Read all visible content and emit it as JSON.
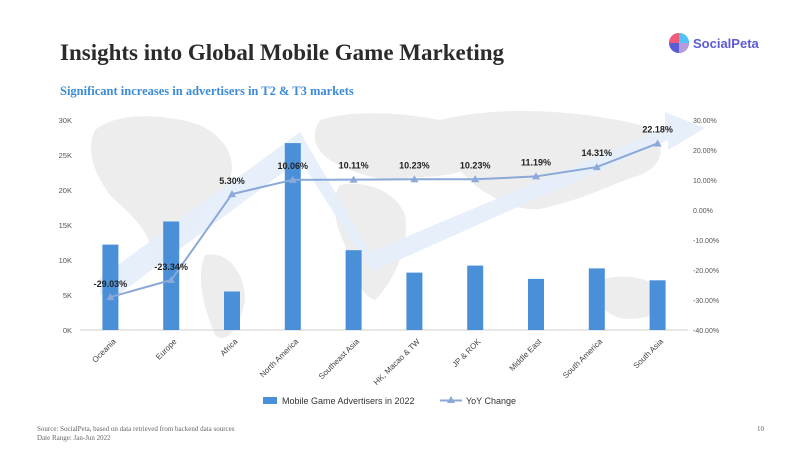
{
  "title": "Insights into Global Mobile Game Marketing",
  "subtitle": "Significant increases in advertisers in T2 & T3 markets",
  "logo": {
    "text": "SocialPeta",
    "colors": [
      "#f25c7a",
      "#5b5bd6",
      "#4fc3f7"
    ]
  },
  "footer": {
    "source": "Source: SocialPeta, based on data retrieved from backend data sources",
    "date_range": "Date Range: Jan-Jun 2022",
    "page_number": "10"
  },
  "chart_data": {
    "type": "bar",
    "categories": [
      "Oceania",
      "Europe",
      "Africa",
      "North America",
      "Southeast Asia",
      "HK, Macao & TW",
      "JP & ROK",
      "Middle East",
      "South America",
      "South Asia"
    ],
    "series": [
      {
        "name": "Mobile Game Advertisers in 2022",
        "type": "bar",
        "axis": "left",
        "color": "#4a90d9",
        "values": [
          12200,
          15500,
          5500,
          26700,
          11400,
          8200,
          9200,
          7300,
          8800,
          7100
        ]
      },
      {
        "name": "YoY Change",
        "type": "line",
        "axis": "right",
        "color": "#8aa8d8",
        "values": [
          -29.03,
          -23.34,
          5.3,
          10.06,
          10.11,
          10.23,
          10.23,
          11.19,
          14.31,
          22.18
        ],
        "labels": [
          "-29.03%",
          "-23.34%",
          "5.30%",
          "10.06%",
          "10.11%",
          "10.23%",
          "10.23%",
          "11.19%",
          "14.31%",
          "22.18%"
        ]
      }
    ],
    "y_left": {
      "min": 0,
      "max": 30000,
      "ticks": [
        "0K",
        "5K",
        "10K",
        "15K",
        "20K",
        "25K",
        "30K"
      ]
    },
    "y_right": {
      "min": -40,
      "max": 30,
      "ticks": [
        "-40.00%",
        "-30.00%",
        "-20.00%",
        "-10.00%",
        "0.00%",
        "10.00%",
        "20.00%",
        "30.00%"
      ]
    },
    "legend": [
      "Mobile Game Advertisers in 2022",
      "YoY Change"
    ],
    "legend_position": "bottom"
  }
}
